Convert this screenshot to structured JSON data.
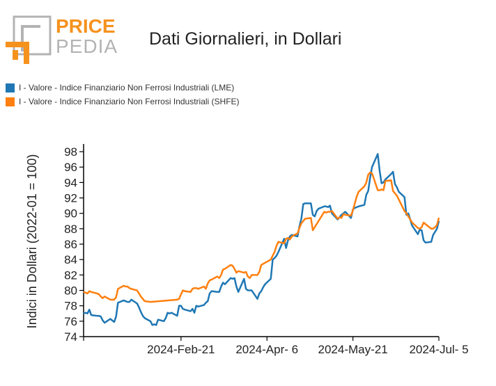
{
  "logo": {
    "word1": "PRICE",
    "word2": "PEDIA",
    "accent": "#f5921e",
    "grey": "#b3b3b3",
    "icon": "pricepedia-logo"
  },
  "chart_data": {
    "type": "line",
    "title": "Dati Giornalieri, in Dollari",
    "xlabel": "",
    "ylabel": "Indici in Dollari (2022-01 = 100)",
    "ylim": [
      74,
      99
    ],
    "yticks": [
      74,
      76,
      78,
      80,
      82,
      84,
      86,
      88,
      90,
      92,
      94,
      96,
      98
    ],
    "xlim": [
      "2024-01-01",
      "2024-07-05"
    ],
    "xticks": [
      {
        "date": "2024-01-01",
        "label": ""
      },
      {
        "date": "2024-02-21",
        "label": "2024-Feb-21"
      },
      {
        "date": "2024-04-06",
        "label": "2024-Apr- 6"
      },
      {
        "date": "2024-05-21",
        "label": "2024-May-21"
      },
      {
        "date": "2024-07-05",
        "label": "2024-Jul- 5"
      }
    ],
    "legend_position": "top-left",
    "grid": false,
    "series": [
      {
        "name": "I - Valore - Indice Finanziario Non Ferrosi Industriali (LME)",
        "color": "#1f77b4",
        "points": [
          [
            "2024-01-01",
            77.0
          ],
          [
            "2024-01-02",
            77.1
          ],
          [
            "2024-01-03",
            77.0
          ],
          [
            "2024-01-04",
            77.5
          ],
          [
            "2024-01-05",
            76.8
          ],
          [
            "2024-01-08",
            76.7
          ],
          [
            "2024-01-09",
            76.7
          ],
          [
            "2024-01-10",
            76.6
          ],
          [
            "2024-01-11",
            76.1
          ],
          [
            "2024-01-12",
            75.8
          ],
          [
            "2024-01-15",
            76.3
          ],
          [
            "2024-01-16",
            76.1
          ],
          [
            "2024-01-17",
            75.9
          ],
          [
            "2024-01-18",
            76.6
          ],
          [
            "2024-01-19",
            78.4
          ],
          [
            "2024-01-22",
            78.7
          ],
          [
            "2024-01-23",
            78.6
          ],
          [
            "2024-01-24",
            78.5
          ],
          [
            "2024-01-25",
            78.5
          ],
          [
            "2024-01-26",
            78.8
          ],
          [
            "2024-01-29",
            78.3
          ],
          [
            "2024-01-30",
            77.8
          ],
          [
            "2024-01-31",
            77.2
          ],
          [
            "2024-02-01",
            76.7
          ],
          [
            "2024-02-02",
            76.4
          ],
          [
            "2024-02-05",
            76.0
          ],
          [
            "2024-02-06",
            75.5
          ],
          [
            "2024-02-07",
            75.6
          ],
          [
            "2024-02-08",
            75.5
          ],
          [
            "2024-02-09",
            76.2
          ],
          [
            "2024-02-12",
            76.0
          ],
          [
            "2024-02-13",
            76.4
          ],
          [
            "2024-02-14",
            77.1
          ],
          [
            "2024-02-15",
            77.0
          ],
          [
            "2024-02-16",
            77.1
          ],
          [
            "2024-02-19",
            76.7
          ],
          [
            "2024-02-20",
            78.0
          ],
          [
            "2024-02-21",
            78.0
          ],
          [
            "2024-02-22",
            77.6
          ],
          [
            "2024-02-23",
            77.5
          ],
          [
            "2024-02-26",
            77.3
          ],
          [
            "2024-02-27",
            77.6
          ],
          [
            "2024-02-28",
            77.1
          ],
          [
            "2024-02-29",
            78.0
          ],
          [
            "2024-03-01",
            77.9
          ],
          [
            "2024-03-04",
            78.1
          ],
          [
            "2024-03-05",
            78.4
          ],
          [
            "2024-03-06",
            78.6
          ],
          [
            "2024-03-07",
            79.6
          ],
          [
            "2024-03-08",
            79.9
          ],
          [
            "2024-03-11",
            79.8
          ],
          [
            "2024-03-12",
            79.8
          ],
          [
            "2024-03-13",
            80.5
          ],
          [
            "2024-03-14",
            81.0
          ],
          [
            "2024-03-15",
            80.8
          ],
          [
            "2024-03-18",
            81.6
          ],
          [
            "2024-03-19",
            81.5
          ],
          [
            "2024-03-20",
            81.6
          ],
          [
            "2024-03-21",
            80.5
          ],
          [
            "2024-03-22",
            79.8
          ],
          [
            "2024-03-25",
            81.5
          ],
          [
            "2024-03-26",
            80.2
          ],
          [
            "2024-03-27",
            80.0
          ],
          [
            "2024-03-28",
            80.0
          ],
          [
            "2024-03-29",
            80.0
          ],
          [
            "2024-04-01",
            78.9
          ],
          [
            "2024-04-02",
            79.6
          ],
          [
            "2024-04-03",
            79.9
          ],
          [
            "2024-04-04",
            80.4
          ],
          [
            "2024-04-05",
            80.8
          ],
          [
            "2024-04-08",
            81.5
          ],
          [
            "2024-04-09",
            84.0
          ],
          [
            "2024-04-10",
            84.2
          ],
          [
            "2024-04-11",
            84.5
          ],
          [
            "2024-04-12",
            85.0
          ],
          [
            "2024-04-15",
            86.7
          ],
          [
            "2024-04-16",
            85.5
          ],
          [
            "2024-04-17",
            86.5
          ],
          [
            "2024-04-18",
            87.0
          ],
          [
            "2024-04-19",
            87.2
          ],
          [
            "2024-04-22",
            87.0
          ],
          [
            "2024-04-23",
            88.3
          ],
          [
            "2024-04-24",
            89.3
          ],
          [
            "2024-04-25",
            91.2
          ],
          [
            "2024-04-26",
            91.3
          ],
          [
            "2024-04-29",
            91.3
          ],
          [
            "2024-04-30",
            89.8
          ],
          [
            "2024-05-01",
            89.6
          ],
          [
            "2024-05-02",
            90.3
          ],
          [
            "2024-05-03",
            90.6
          ],
          [
            "2024-05-06",
            90.9
          ],
          [
            "2024-05-07",
            90.9
          ],
          [
            "2024-05-08",
            90.8
          ],
          [
            "2024-05-09",
            91.0
          ],
          [
            "2024-05-10",
            90.0
          ],
          [
            "2024-05-13",
            89.2
          ],
          [
            "2024-05-14",
            89.5
          ],
          [
            "2024-05-15",
            89.8
          ],
          [
            "2024-05-16",
            90.0
          ],
          [
            "2024-05-17",
            90.2
          ],
          [
            "2024-05-20",
            89.4
          ],
          [
            "2024-05-21",
            90.5
          ],
          [
            "2024-05-22",
            90.7
          ],
          [
            "2024-05-23",
            90.8
          ],
          [
            "2024-05-24",
            90.9
          ],
          [
            "2024-05-27",
            91.1
          ],
          [
            "2024-05-28",
            92.4
          ],
          [
            "2024-05-29",
            92.9
          ],
          [
            "2024-05-30",
            94.6
          ],
          [
            "2024-05-31",
            96.0
          ],
          [
            "2024-06-03",
            97.7
          ],
          [
            "2024-06-04",
            95.5
          ],
          [
            "2024-06-05",
            93.9
          ],
          [
            "2024-06-06",
            94.0
          ],
          [
            "2024-06-07",
            94.4
          ],
          [
            "2024-06-10",
            95.1
          ],
          [
            "2024-06-11",
            95.4
          ],
          [
            "2024-06-12",
            93.8
          ],
          [
            "2024-06-13",
            93.4
          ],
          [
            "2024-06-14",
            92.8
          ],
          [
            "2024-06-17",
            92.1
          ],
          [
            "2024-06-18",
            89.8
          ],
          [
            "2024-06-19",
            90.0
          ],
          [
            "2024-06-20",
            89.2
          ],
          [
            "2024-06-21",
            88.4
          ],
          [
            "2024-06-24",
            87.3
          ],
          [
            "2024-06-25",
            87.9
          ],
          [
            "2024-06-26",
            87.8
          ],
          [
            "2024-06-27",
            86.5
          ],
          [
            "2024-06-28",
            86.2
          ],
          [
            "2024-07-01",
            86.3
          ],
          [
            "2024-07-02",
            87.2
          ],
          [
            "2024-07-03",
            87.6
          ],
          [
            "2024-07-04",
            88.0
          ],
          [
            "2024-07-05",
            89.0
          ]
        ]
      },
      {
        "name": "I - Valore - Indice Finanziario Non Ferrosi Industriali (SHFE)",
        "color": "#ff7f0e",
        "points": [
          [
            "2024-01-01",
            79.8
          ],
          [
            "2024-01-02",
            79.7
          ],
          [
            "2024-01-03",
            79.6
          ],
          [
            "2024-01-04",
            79.9
          ],
          [
            "2024-01-05",
            79.8
          ],
          [
            "2024-01-08",
            79.6
          ],
          [
            "2024-01-09",
            79.5
          ],
          [
            "2024-01-10",
            79.2
          ],
          [
            "2024-01-11",
            79.0
          ],
          [
            "2024-01-12",
            79.2
          ],
          [
            "2024-01-15",
            78.8
          ],
          [
            "2024-01-16",
            78.8
          ],
          [
            "2024-01-17",
            78.8
          ],
          [
            "2024-01-18",
            79.1
          ],
          [
            "2024-01-19",
            80.2
          ],
          [
            "2024-01-22",
            80.6
          ],
          [
            "2024-01-23",
            80.5
          ],
          [
            "2024-01-24",
            80.5
          ],
          [
            "2024-01-25",
            80.3
          ],
          [
            "2024-01-26",
            80.2
          ],
          [
            "2024-01-29",
            80.0
          ],
          [
            "2024-01-30",
            79.6
          ],
          [
            "2024-01-31",
            79.2
          ],
          [
            "2024-02-01",
            78.9
          ],
          [
            "2024-02-02",
            78.6
          ],
          [
            "2024-02-05",
            78.5
          ],
          [
            "2024-02-19",
            78.8
          ],
          [
            "2024-02-20",
            78.9
          ],
          [
            "2024-02-21",
            79.5
          ],
          [
            "2024-02-22",
            80.0
          ],
          [
            "2024-02-23",
            79.9
          ],
          [
            "2024-02-26",
            79.8
          ],
          [
            "2024-02-27",
            80.2
          ],
          [
            "2024-02-28",
            80.3
          ],
          [
            "2024-02-29",
            80.3
          ],
          [
            "2024-03-01",
            80.2
          ],
          [
            "2024-03-04",
            80.5
          ],
          [
            "2024-03-05",
            80.2
          ],
          [
            "2024-03-06",
            80.9
          ],
          [
            "2024-03-07",
            81.3
          ],
          [
            "2024-03-08",
            81.4
          ],
          [
            "2024-03-11",
            81.8
          ],
          [
            "2024-03-12",
            81.6
          ],
          [
            "2024-03-13",
            82.0
          ],
          [
            "2024-03-14",
            82.7
          ],
          [
            "2024-03-15",
            82.8
          ],
          [
            "2024-03-18",
            83.3
          ],
          [
            "2024-03-19",
            83.2
          ],
          [
            "2024-03-20",
            82.8
          ],
          [
            "2024-03-21",
            82.3
          ],
          [
            "2024-03-22",
            82.5
          ],
          [
            "2024-03-25",
            82.3
          ],
          [
            "2024-03-26",
            82.4
          ],
          [
            "2024-03-27",
            81.8
          ],
          [
            "2024-03-28",
            81.6
          ],
          [
            "2024-03-29",
            82.0
          ],
          [
            "2024-04-01",
            82.0
          ],
          [
            "2024-04-02",
            82.4
          ],
          [
            "2024-04-03",
            83.3
          ],
          [
            "2024-04-08",
            84.0
          ],
          [
            "2024-04-09",
            84.5
          ],
          [
            "2024-04-10",
            85.0
          ],
          [
            "2024-04-11",
            85.8
          ],
          [
            "2024-04-12",
            86.3
          ],
          [
            "2024-04-15",
            86.1
          ],
          [
            "2024-04-16",
            86.7
          ],
          [
            "2024-04-17",
            86.8
          ],
          [
            "2024-04-18",
            86.6
          ],
          [
            "2024-04-19",
            87.0
          ],
          [
            "2024-04-22",
            87.4
          ],
          [
            "2024-04-23",
            88.1
          ],
          [
            "2024-04-24",
            88.7
          ],
          [
            "2024-04-25",
            89.0
          ],
          [
            "2024-04-26",
            89.3
          ],
          [
            "2024-04-29",
            89.4
          ],
          [
            "2024-04-30",
            87.8
          ],
          [
            "2024-05-06",
            90.2
          ],
          [
            "2024-05-07",
            90.1
          ],
          [
            "2024-05-08",
            90.2
          ],
          [
            "2024-05-09",
            90.2
          ],
          [
            "2024-05-10",
            90.3
          ],
          [
            "2024-05-13",
            89.3
          ],
          [
            "2024-05-14",
            89.5
          ],
          [
            "2024-05-15",
            89.4
          ],
          [
            "2024-05-16",
            89.9
          ],
          [
            "2024-05-17",
            89.8
          ],
          [
            "2024-05-20",
            89.7
          ],
          [
            "2024-05-21",
            90.4
          ],
          [
            "2024-05-22",
            91.3
          ],
          [
            "2024-05-23",
            92.2
          ],
          [
            "2024-05-24",
            92.8
          ],
          [
            "2024-05-27",
            93.5
          ],
          [
            "2024-05-28",
            94.0
          ],
          [
            "2024-05-29",
            95.0
          ],
          [
            "2024-05-30",
            95.3
          ],
          [
            "2024-05-31",
            95.2
          ],
          [
            "2024-06-03",
            93.0
          ],
          [
            "2024-06-04",
            93.0
          ],
          [
            "2024-06-05",
            93.1
          ],
          [
            "2024-06-06",
            93.0
          ],
          [
            "2024-06-07",
            94.2
          ],
          [
            "2024-06-10",
            94.3
          ],
          [
            "2024-06-11",
            92.9
          ],
          [
            "2024-06-12",
            92.6
          ],
          [
            "2024-06-13",
            92.3
          ],
          [
            "2024-06-14",
            91.8
          ],
          [
            "2024-06-17",
            90.3
          ],
          [
            "2024-06-18",
            90.0
          ],
          [
            "2024-06-19",
            89.6
          ],
          [
            "2024-06-20",
            89.2
          ],
          [
            "2024-06-21",
            88.8
          ],
          [
            "2024-06-24",
            88.1
          ],
          [
            "2024-06-25",
            88.0
          ],
          [
            "2024-06-26",
            88.2
          ],
          [
            "2024-06-27",
            88.8
          ],
          [
            "2024-06-28",
            88.6
          ],
          [
            "2024-07-01",
            88.0
          ],
          [
            "2024-07-02",
            88.0
          ],
          [
            "2024-07-03",
            88.2
          ],
          [
            "2024-07-04",
            88.5
          ],
          [
            "2024-07-05",
            89.4
          ]
        ]
      }
    ]
  }
}
